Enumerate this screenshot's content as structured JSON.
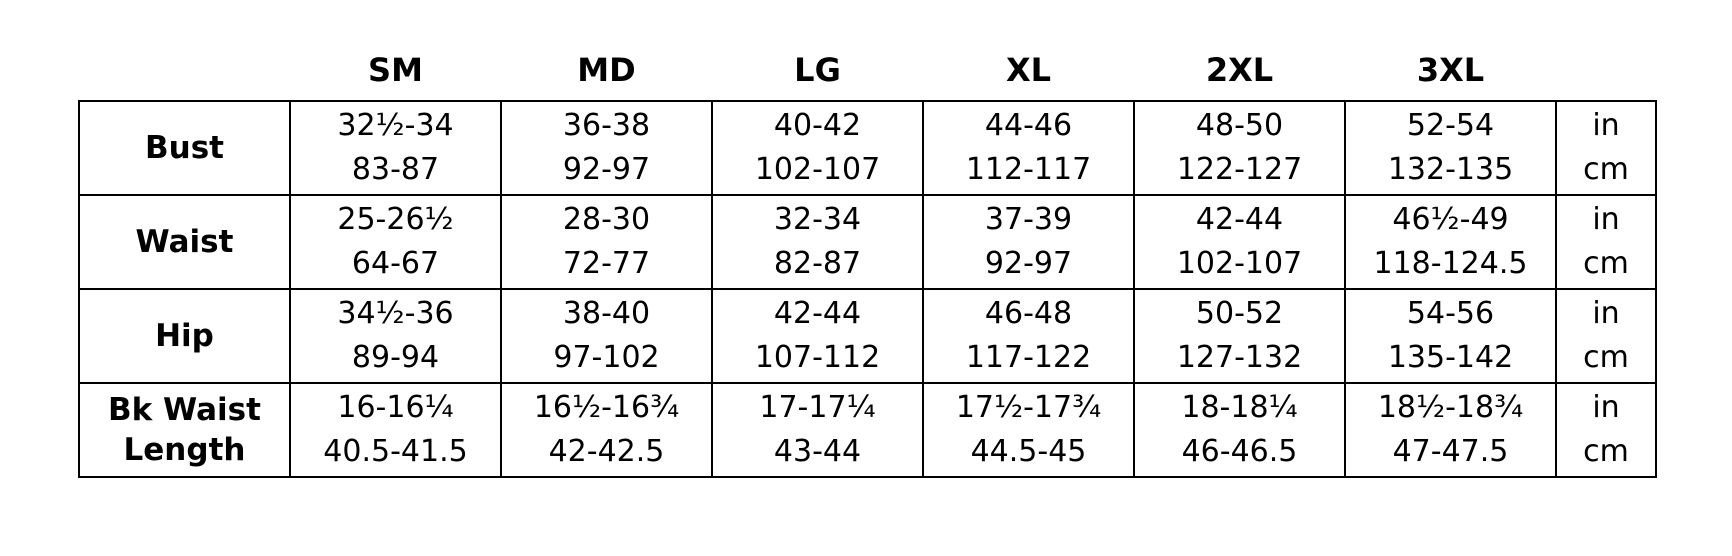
{
  "table": {
    "columns": [
      "SM",
      "MD",
      "LG",
      "XL",
      "2XL",
      "3XL"
    ],
    "rows": [
      {
        "label": "Bust",
        "cells": [
          [
            "32½-34",
            "83-87"
          ],
          [
            "36-38",
            "92-97"
          ],
          [
            "40-42",
            "102-107"
          ],
          [
            "44-46",
            "112-117"
          ],
          [
            "48-50",
            "122-127"
          ],
          [
            "52-54",
            "132-135"
          ]
        ],
        "units": [
          "in",
          "cm"
        ]
      },
      {
        "label": "Waist",
        "cells": [
          [
            "25-26½",
            "64-67"
          ],
          [
            "28-30",
            "72-77"
          ],
          [
            "32-34",
            "82-87"
          ],
          [
            "37-39",
            "92-97"
          ],
          [
            "42-44",
            "102-107"
          ],
          [
            "46½-49",
            "118-124.5"
          ]
        ],
        "units": [
          "in",
          "cm"
        ]
      },
      {
        "label": "Hip",
        "cells": [
          [
            "34½-36",
            "89-94"
          ],
          [
            "38-40",
            "97-102"
          ],
          [
            "42-44",
            "107-112"
          ],
          [
            "46-48",
            "117-122"
          ],
          [
            "50-52",
            "127-132"
          ],
          [
            "54-56",
            "135-142"
          ]
        ],
        "units": [
          "in",
          "cm"
        ]
      },
      {
        "label": "Bk Waist Length",
        "cells": [
          [
            "16-16¼",
            "40.5-41.5"
          ],
          [
            "16½-16¾",
            "42-42.5"
          ],
          [
            "17-17¼",
            "43-44"
          ],
          [
            "17½-17¾",
            "44.5-45"
          ],
          [
            "18-18¼",
            "46-46.5"
          ],
          [
            "18½-18¾",
            "47-47.5"
          ]
        ],
        "units": [
          "in",
          "cm"
        ]
      }
    ]
  }
}
